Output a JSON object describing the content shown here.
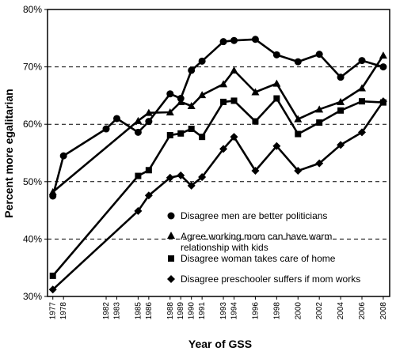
{
  "chart_data": {
    "type": "line",
    "title": "",
    "xlabel": "Year of GSS",
    "ylabel": "Percent more egalitarian",
    "ylim": [
      30,
      80
    ],
    "xlim": [
      1976.5,
      2008.6
    ],
    "y_ticks": [
      "30%",
      "40%",
      "50%",
      "60%",
      "70%",
      "80%"
    ],
    "y_tick_values": [
      30,
      40,
      50,
      60,
      70,
      80
    ],
    "gridlines_dashed_at": [
      40,
      50,
      60,
      70
    ],
    "x_ticks": [
      1977,
      1978,
      1982,
      1983,
      1985,
      1986,
      1988,
      1989,
      1990,
      1991,
      1993,
      1994,
      1996,
      1998,
      2000,
      2002,
      2004,
      2006,
      2008
    ],
    "legend_position": "lower-right (inside plot)",
    "series": [
      {
        "name": "Disagree men are better politicians",
        "marker": "circle",
        "x": [
          1977,
          1978,
          1982,
          1983,
          1985,
          1986,
          1988,
          1989,
          1990,
          1991,
          1993,
          1994,
          1996,
          1998,
          2000,
          2002,
          2004,
          2006,
          2008
        ],
        "y": [
          47.5,
          54.5,
          59.2,
          61.0,
          58.6,
          60.5,
          65.3,
          64.5,
          69.4,
          71.0,
          74.4,
          74.6,
          74.8,
          72.1,
          70.9,
          72.2,
          68.2,
          71.1,
          70.0
        ]
      },
      {
        "name": "Agree working mom can have warm relationship with kids",
        "marker": "triangle",
        "x": [
          1977,
          1985,
          1986,
          1988,
          1989,
          1990,
          1991,
          1993,
          1994,
          1996,
          1998,
          2000,
          2002,
          2004,
          2006,
          2008
        ],
        "y": [
          48.2,
          60.6,
          62.0,
          62.1,
          63.9,
          63.2,
          65.1,
          67.0,
          69.4,
          65.6,
          67.1,
          60.9,
          62.6,
          63.9,
          66.3,
          72.0
        ]
      },
      {
        "name": "Disagree woman takes care of home",
        "marker": "square",
        "x": [
          1977,
          1985,
          1986,
          1988,
          1989,
          1990,
          1991,
          1993,
          1994,
          1996,
          1998,
          2000,
          2002,
          2004,
          2006,
          2008
        ],
        "y": [
          33.6,
          51.0,
          52.0,
          58.1,
          58.4,
          59.2,
          57.8,
          63.9,
          64.1,
          60.5,
          64.5,
          58.3,
          60.3,
          62.4,
          64.0,
          63.8
        ]
      },
      {
        "name": "Disagree preschooler suffers if mom works",
        "marker": "diamond",
        "x": [
          1977,
          1985,
          1986,
          1988,
          1989,
          1990,
          1991,
          1993,
          1994,
          1996,
          1998,
          2000,
          2002,
          2004,
          2006,
          2008
        ],
        "y": [
          31.2,
          44.9,
          47.6,
          50.7,
          51.1,
          49.3,
          50.8,
          55.7,
          57.8,
          51.9,
          56.2,
          51.9,
          53.2,
          56.4,
          58.6,
          64.0
        ]
      }
    ],
    "legend": [
      {
        "label": "Disagree men are better politicians",
        "marker": "circle"
      },
      {
        "label": "Agree working mom can have warm",
        "label_line2": "relationship with kids",
        "marker": "triangle"
      },
      {
        "label": "Disagree woman takes care of home",
        "marker": "square"
      },
      {
        "label": "Disagree preschooler suffers if mom works",
        "marker": "diamond"
      }
    ]
  }
}
